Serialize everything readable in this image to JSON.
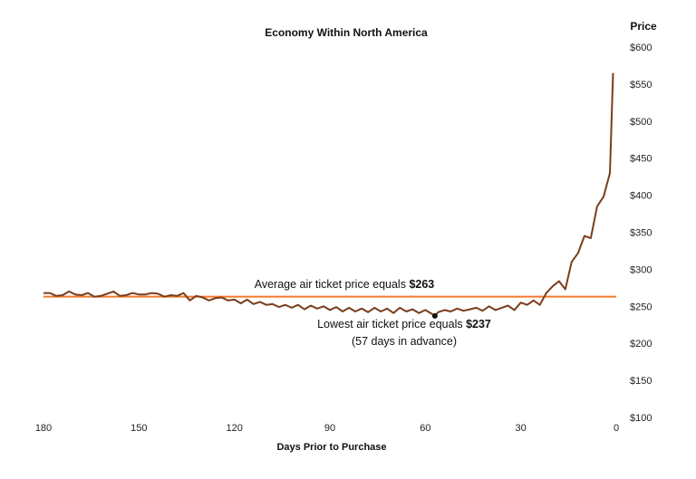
{
  "chart_data": {
    "type": "line",
    "title": "Economy Within North America",
    "xlabel": "Days Prior to Purchase",
    "ylabel": "Price",
    "xlim": [
      180,
      0
    ],
    "ylim": [
      100,
      600
    ],
    "x_ticks": [
      180,
      150,
      120,
      90,
      60,
      30,
      0
    ],
    "x_tick_labels": [
      "180",
      "150",
      "120",
      "90",
      "60",
      "30",
      "0"
    ],
    "y_ticks": [
      100,
      150,
      200,
      250,
      300,
      350,
      400,
      450,
      500,
      550,
      600
    ],
    "y_tick_labels": [
      "$100",
      "$150",
      "$200",
      "$250",
      "$300",
      "$350",
      "$400",
      "$450",
      "$500",
      "$550",
      "$600"
    ],
    "grid": false,
    "colors": {
      "line": "#7a3d1c",
      "average": "#f07a2b",
      "text": "#111111"
    },
    "series": [
      {
        "name": "",
        "x": [
          180,
          178,
          176,
          174,
          172,
          170,
          168,
          166,
          164,
          162,
          160,
          158,
          156,
          154,
          152,
          150,
          148,
          146,
          144,
          142,
          140,
          138,
          136,
          134,
          132,
          130,
          128,
          126,
          124,
          122,
          120,
          118,
          116,
          114,
          112,
          110,
          108,
          106,
          104,
          102,
          100,
          98,
          96,
          94,
          92,
          90,
          88,
          86,
          84,
          82,
          80,
          78,
          76,
          74,
          72,
          70,
          68,
          66,
          64,
          62,
          60,
          58,
          57,
          56,
          54,
          52,
          50,
          48,
          46,
          44,
          42,
          40,
          38,
          36,
          34,
          32,
          30,
          28,
          26,
          24,
          22,
          20,
          18,
          16,
          14,
          12,
          10,
          8,
          6,
          4,
          2,
          1
        ],
        "values": [
          268,
          268,
          264,
          265,
          270,
          266,
          265,
          268,
          263,
          264,
          267,
          270,
          264,
          265,
          268,
          266,
          266,
          268,
          267,
          263,
          265,
          264,
          268,
          258,
          264,
          262,
          258,
          261,
          262,
          258,
          259,
          254,
          259,
          253,
          256,
          252,
          253,
          249,
          252,
          248,
          252,
          246,
          251,
          247,
          250,
          245,
          249,
          243,
          248,
          243,
          247,
          242,
          248,
          243,
          247,
          241,
          248,
          243,
          246,
          241,
          245,
          240,
          237,
          242,
          245,
          243,
          247,
          244,
          246,
          248,
          244,
          250,
          245,
          248,
          251,
          245,
          255,
          252,
          258,
          252,
          268,
          277,
          284,
          273,
          310,
          322,
          345,
          342,
          385,
          398,
          430,
          565
        ]
      }
    ],
    "reference_line": {
      "value": 263,
      "label": "Average air ticket price equals ",
      "label_value": "$263"
    },
    "annotations": [
      {
        "x": 57,
        "y": 237,
        "label": "Lowest air ticket price equals ",
        "label_value": "$237",
        "sublabel": "(57 days in advance)"
      }
    ]
  }
}
